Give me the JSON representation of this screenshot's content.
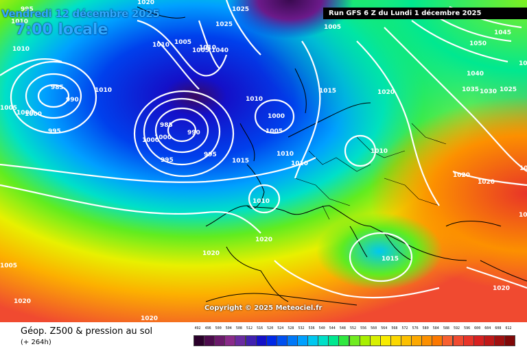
{
  "header": {
    "date": "Vendredi 12 décembre 2025",
    "local_time": "7:00 locale",
    "run": "Run GFS 6 Z du Lundi 1 décembre 2025"
  },
  "copyright": "Copyright © 2025 Meteociel.fr",
  "footer": {
    "title": "Géop. Z500 & pression au sol",
    "lead": "(+ 264h)"
  },
  "legend": {
    "values": [
      "492",
      "496",
      "500",
      "504",
      "508",
      "512",
      "516",
      "520",
      "524",
      "528",
      "532",
      "536",
      "540",
      "544",
      "548",
      "552",
      "556",
      "560",
      "564",
      "568",
      "572",
      "576",
      "580",
      "584",
      "588",
      "592",
      "596",
      "600",
      "604",
      "608",
      "612"
    ],
    "colors": [
      "#2a002a",
      "#4c0b4c",
      "#6b1a6b",
      "#8a2a8a",
      "#6a2aa0",
      "#4020b0",
      "#1410c8",
      "#0028e6",
      "#0050f0",
      "#0078f8",
      "#00a0ff",
      "#00c8f0",
      "#00e0c8",
      "#00e890",
      "#30e840",
      "#70ec20",
      "#a8f000",
      "#d8f000",
      "#f8ec00",
      "#fcd800",
      "#fcc000",
      "#fca800",
      "#fc9000",
      "#fc7800",
      "#f86030",
      "#f04a30",
      "#e83428",
      "#d82020",
      "#c01818",
      "#a01010",
      "#800808"
    ]
  },
  "map": {
    "pressure_labels": [
      {
        "text": "1020"
      },
      {
        "text": "1025"
      },
      {
        "text": "1005"
      },
      {
        "text": "995"
      },
      {
        "text": "1010"
      },
      {
        "text": "1010"
      },
      {
        "text": "1005"
      },
      {
        "text": "1025"
      },
      {
        "text": "1005"
      },
      {
        "text": "1010"
      },
      {
        "text": "1040"
      },
      {
        "text": "985"
      },
      {
        "text": "990"
      },
      {
        "text": "1000"
      },
      {
        "text": "995"
      },
      {
        "text": "1010"
      },
      {
        "text": "1005"
      },
      {
        "text": "1000"
      },
      {
        "text": "985"
      },
      {
        "text": "990"
      },
      {
        "text": "1000"
      },
      {
        "text": "995"
      },
      {
        "text": "995"
      },
      {
        "text": "1010"
      },
      {
        "text": "1000"
      },
      {
        "text": "1005"
      },
      {
        "text": "1015"
      },
      {
        "text": "1020"
      },
      {
        "text": "1015"
      },
      {
        "text": "1010"
      },
      {
        "text": "1010"
      },
      {
        "text": "1010"
      },
      {
        "text": "1010"
      },
      {
        "text": "1020"
      },
      {
        "text": "1015"
      },
      {
        "text": "1045"
      },
      {
        "text": "1050"
      },
      {
        "text": "1040"
      },
      {
        "text": "1035"
      },
      {
        "text": "1030"
      },
      {
        "text": "1025"
      },
      {
        "text": "1020"
      },
      {
        "text": "1020"
      },
      {
        "text": "1020"
      },
      {
        "text": "1020"
      },
      {
        "text": "1020"
      },
      {
        "text": "1020"
      },
      {
        "text": "1020"
      },
      {
        "text": "1020"
      },
      {
        "text": "1005"
      },
      {
        "text": "1000"
      },
      {
        "text": "1010"
      },
      {
        "text": "1015"
      }
    ]
  }
}
